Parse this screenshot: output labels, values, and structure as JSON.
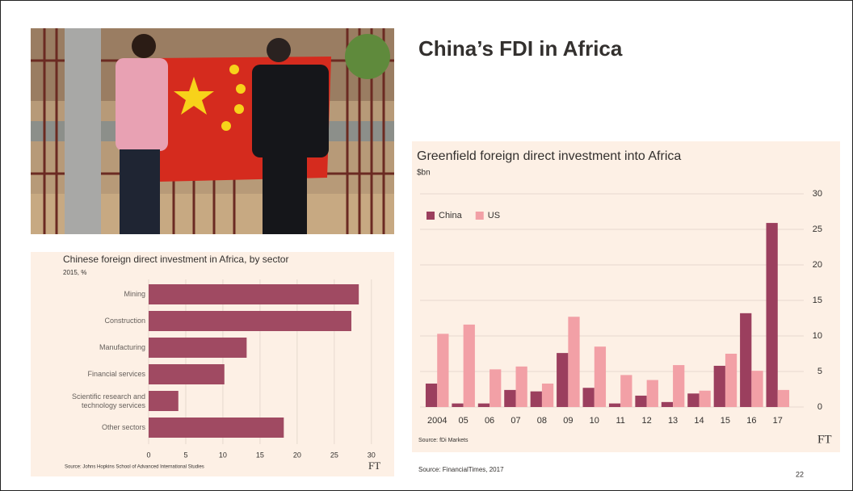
{
  "slide": {
    "title": "China’s FDI in Africa",
    "source": "Source: FinancialTimes, 2017",
    "page": "22"
  },
  "chart_data": [
    {
      "type": "barh",
      "title": "Chinese foreign direct investment in Africa, by sector",
      "subtitle": "2015, %",
      "categories": [
        "Mining",
        "Construction",
        "Manufacturing",
        "Financial services",
        "Scientific research and technology services",
        "Other sectors"
      ],
      "values": [
        28.3,
        27.3,
        13.2,
        10.2,
        4,
        18.2
      ],
      "color": "#a04a62",
      "xlim": [
        0,
        31
      ],
      "xticks": [
        0,
        5,
        10,
        15,
        20,
        25,
        30
      ],
      "grid": true,
      "source": "Source: Johns Hopkins School of Advanced International Studies",
      "logo": "FT"
    },
    {
      "type": "bar",
      "title": "Greenfield foreign direct investment into Africa",
      "subtitle": "$bn",
      "categories": [
        "2004",
        "05",
        "06",
        "07",
        "08",
        "09",
        "10",
        "11",
        "12",
        "13",
        "14",
        "15",
        "16",
        "17"
      ],
      "series": [
        {
          "name": "China",
          "color": "#9b3f5e",
          "values": [
            3.3,
            0.5,
            0.5,
            2.4,
            2.2,
            7.6,
            2.7,
            0.5,
            1.6,
            0.7,
            1.9,
            5.8,
            13.2,
            25.9
          ]
        },
        {
          "name": "US",
          "color": "#f2a0a6",
          "values": [
            10.3,
            11.6,
            5.3,
            5.7,
            3.3,
            12.7,
            8.5,
            4.5,
            3.8,
            5.9,
            2.3,
            7.5,
            5.1,
            2.4
          ]
        }
      ],
      "ylim": [
        0,
        30
      ],
      "yticks": [
        0,
        5,
        10,
        15,
        20,
        25,
        30
      ],
      "grid": true,
      "legend": "top-left",
      "source": "Source: fDi Markets",
      "logo": "FT"
    }
  ]
}
